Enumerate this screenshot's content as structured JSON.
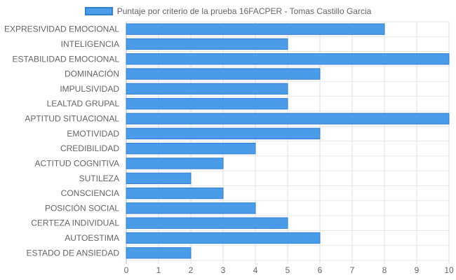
{
  "chart_data": {
    "type": "bar",
    "orientation": "horizontal",
    "categories": [
      "EXPRESIVIDAD EMOCIONAL",
      "INTELIGENCIA",
      "ESTABILIDAD EMOCIONAL",
      "DOMINACIÓN",
      "IMPULSIVIDAD",
      "LEALTAD GRUPAL",
      "APTITUD SITUACIONAL",
      "EMOTIVIDAD",
      "CREDIBILIDAD",
      "ACTITUD COGNITIVA",
      "SUTILEZA",
      "CONSCIENCIA",
      "POSICIÓN SOCIAL",
      "CERTEZA INDIVIDUAL",
      "AUTOESTIMA",
      "ESTADO DE ANSIEDAD"
    ],
    "series": [
      {
        "name": "Puntaje por criterio de la prueba 16FACPER - Tomas Castillo Garcia",
        "values": [
          8,
          5,
          10,
          6,
          5,
          5,
          10,
          6,
          4,
          3,
          2,
          3,
          4,
          5,
          6,
          2
        ],
        "color": "#4a9be8",
        "border_color": "#2f7fd9"
      }
    ],
    "x_ticks": [
      "0",
      "1",
      "2",
      "3",
      "4",
      "5",
      "6",
      "7",
      "8",
      "9",
      "10"
    ],
    "xlim": [
      0,
      10
    ],
    "grid": true,
    "legend_position": "top"
  }
}
